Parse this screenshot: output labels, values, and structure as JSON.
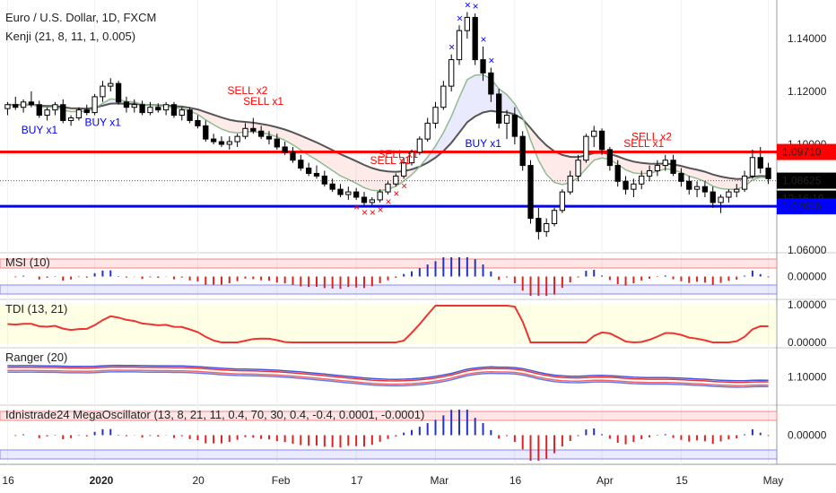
{
  "header": {
    "title": "Euro / U.S. Dollar, 1D, FXCM",
    "indicator": "Kenji (21, 8, 11, 1, 0.005)"
  },
  "colors": {
    "bull": "#ffffff",
    "bear": "#000000",
    "resistance": "#ff0000",
    "support": "#0000ff",
    "sell": "#ff0000",
    "buy": "#0000ff",
    "fast_ma": "#8fbc8f",
    "slow_ma": "#555555"
  },
  "chart_data": [
    {
      "type": "candlestick",
      "title": "Euro / U.S. Dollar, 1D, FXCM",
      "ylim": [
        1.055,
        1.155
      ],
      "y_ticks": [
        "1.14000",
        "1.12000",
        "1.10000",
        "1.06000"
      ],
      "x_ticks": [
        "16",
        "2020",
        "20",
        "Feb",
        "17",
        "Mar",
        "16",
        "Apr",
        "15",
        "May"
      ],
      "x_tick_index": [
        0,
        11,
        24,
        34,
        44,
        54,
        64,
        75,
        85,
        96
      ],
      "price_labels": [
        {
          "text": "1.09710",
          "value": 1.0971,
          "color": "#ff0000"
        },
        {
          "text": "1.08625",
          "value": 1.08625,
          "color": "#000000"
        },
        {
          "text": "12:16:19",
          "color": "#000000"
        },
        {
          "text": "1.07656",
          "value": 1.07656,
          "color": "#0000ff"
        }
      ],
      "horizontal_lines": [
        {
          "value": 1.0971,
          "color": "#ff0000"
        },
        {
          "value": 1.07656,
          "color": "#0000ff"
        }
      ],
      "dotted_line": 1.08625,
      "candles": [
        [
          1.1135,
          1.116,
          1.111,
          1.115
        ],
        [
          1.115,
          1.118,
          1.113,
          1.114
        ],
        [
          1.114,
          1.117,
          1.112,
          1.116
        ],
        [
          1.116,
          1.12,
          1.114,
          1.115
        ],
        [
          1.115,
          1.1165,
          1.11,
          1.111
        ],
        [
          1.111,
          1.114,
          1.109,
          1.113
        ],
        [
          1.113,
          1.116,
          1.111,
          1.115
        ],
        [
          1.115,
          1.117,
          1.108,
          1.109
        ],
        [
          1.109,
          1.111,
          1.107,
          1.11
        ],
        [
          1.11,
          1.114,
          1.109,
          1.113
        ],
        [
          1.113,
          1.115,
          1.111,
          1.112
        ],
        [
          1.112,
          1.119,
          1.111,
          1.118
        ],
        [
          1.118,
          1.124,
          1.116,
          1.122
        ],
        [
          1.122,
          1.125,
          1.12,
          1.123
        ],
        [
          1.123,
          1.124,
          1.115,
          1.116
        ],
        [
          1.116,
          1.118,
          1.112,
          1.114
        ],
        [
          1.114,
          1.117,
          1.112,
          1.115
        ],
        [
          1.115,
          1.1165,
          1.111,
          1.112
        ],
        [
          1.112,
          1.116,
          1.111,
          1.114
        ],
        [
          1.114,
          1.1155,
          1.112,
          1.113
        ],
        [
          1.113,
          1.116,
          1.111,
          1.115
        ],
        [
          1.115,
          1.116,
          1.11,
          1.111
        ],
        [
          1.111,
          1.114,
          1.109,
          1.113
        ],
        [
          1.113,
          1.114,
          1.108,
          1.109
        ],
        [
          1.109,
          1.111,
          1.106,
          1.107
        ],
        [
          1.107,
          1.109,
          1.101,
          1.102
        ],
        [
          1.102,
          1.104,
          1.1,
          1.101
        ],
        [
          1.101,
          1.103,
          1.099,
          1.1
        ],
        [
          1.1,
          1.103,
          1.098,
          1.101
        ],
        [
          1.101,
          1.104,
          1.099,
          1.103
        ],
        [
          1.103,
          1.108,
          1.102,
          1.106
        ],
        [
          1.106,
          1.11,
          1.104,
          1.105
        ],
        [
          1.105,
          1.107,
          1.102,
          1.103
        ],
        [
          1.103,
          1.105,
          1.1,
          1.102
        ],
        [
          1.102,
          1.104,
          1.098,
          1.099
        ],
        [
          1.099,
          1.101,
          1.096,
          1.097
        ],
        [
          1.097,
          1.099,
          1.093,
          1.094
        ],
        [
          1.094,
          1.096,
          1.09,
          1.091
        ],
        [
          1.091,
          1.093,
          1.088,
          1.089
        ],
        [
          1.089,
          1.092,
          1.087,
          1.088
        ],
        [
          1.088,
          1.09,
          1.084,
          1.085
        ],
        [
          1.085,
          1.087,
          1.082,
          1.083
        ],
        [
          1.083,
          1.085,
          1.08,
          1.081
        ],
        [
          1.081,
          1.084,
          1.079,
          1.082
        ],
        [
          1.082,
          1.0835,
          1.079,
          1.08
        ],
        [
          1.08,
          1.082,
          1.077,
          1.078
        ],
        [
          1.078,
          1.08,
          1.077,
          1.079
        ],
        [
          1.079,
          1.083,
          1.078,
          1.082
        ],
        [
          1.082,
          1.086,
          1.081,
          1.085
        ],
        [
          1.085,
          1.089,
          1.084,
          1.088
        ],
        [
          1.088,
          1.095,
          1.087,
          1.093
        ],
        [
          1.093,
          1.098,
          1.092,
          1.097
        ],
        [
          1.097,
          1.103,
          1.096,
          1.102
        ],
        [
          1.102,
          1.11,
          1.101,
          1.108
        ],
        [
          1.108,
          1.116,
          1.106,
          1.114
        ],
        [
          1.114,
          1.124,
          1.113,
          1.122
        ],
        [
          1.122,
          1.134,
          1.12,
          1.132
        ],
        [
          1.132,
          1.145,
          1.13,
          1.143
        ],
        [
          1.143,
          1.15,
          1.14,
          1.148
        ],
        [
          1.148,
          1.1495,
          1.13,
          1.132
        ],
        [
          1.132,
          1.137,
          1.124,
          1.127
        ],
        [
          1.127,
          1.129,
          1.116,
          1.119
        ],
        [
          1.119,
          1.121,
          1.106,
          1.108
        ],
        [
          1.108,
          1.113,
          1.102,
          1.111
        ],
        [
          1.111,
          1.114,
          1.1,
          1.103
        ],
        [
          1.103,
          1.105,
          1.09,
          1.092
        ],
        [
          1.092,
          1.094,
          1.07,
          1.072
        ],
        [
          1.072,
          1.076,
          1.064,
          1.067
        ],
        [
          1.067,
          1.072,
          1.065,
          1.07
        ],
        [
          1.07,
          1.076,
          1.069,
          1.075
        ],
        [
          1.075,
          1.083,
          1.074,
          1.082
        ],
        [
          1.082,
          1.09,
          1.081,
          1.088
        ],
        [
          1.088,
          1.096,
          1.086,
          1.094
        ],
        [
          1.094,
          1.104,
          1.093,
          1.103
        ],
        [
          1.103,
          1.107,
          1.099,
          1.105
        ],
        [
          1.105,
          1.106,
          1.096,
          1.098
        ],
        [
          1.098,
          1.099,
          1.09,
          1.092
        ],
        [
          1.092,
          1.094,
          1.084,
          1.086
        ],
        [
          1.086,
          1.088,
          1.081,
          1.083
        ],
        [
          1.083,
          1.087,
          1.08,
          1.085
        ],
        [
          1.085,
          1.09,
          1.083,
          1.088
        ],
        [
          1.088,
          1.092,
          1.086,
          1.09
        ],
        [
          1.09,
          1.094,
          1.088,
          1.092
        ],
        [
          1.092,
          1.096,
          1.09,
          1.094
        ],
        [
          1.094,
          1.096,
          1.088,
          1.089
        ],
        [
          1.089,
          1.091,
          1.084,
          1.086
        ],
        [
          1.086,
          1.088,
          1.081,
          1.083
        ],
        [
          1.083,
          1.086,
          1.08,
          1.084
        ],
        [
          1.084,
          1.086,
          1.08,
          1.082
        ],
        [
          1.082,
          1.084,
          1.076,
          1.078
        ],
        [
          1.078,
          1.081,
          1.074,
          1.08
        ],
        [
          1.08,
          1.083,
          1.078,
          1.082
        ],
        [
          1.082,
          1.085,
          1.08,
          1.083
        ],
        [
          1.083,
          1.09,
          1.082,
          1.088
        ],
        [
          1.088,
          1.098,
          1.087,
          1.095
        ],
        [
          1.095,
          1.099,
          1.089,
          1.091
        ],
        [
          1.091,
          1.093,
          1.085,
          1.087
        ]
      ],
      "signals": [
        {
          "text": "BUY x1",
          "index": 4,
          "value": 1.104,
          "kind": "buy"
        },
        {
          "text": "BUY x1",
          "index": 12,
          "value": 1.107,
          "kind": "buy"
        },
        {
          "text": "SELL x2",
          "index": 30,
          "value": 1.119,
          "kind": "sell"
        },
        {
          "text": "SELL x1",
          "index": 32,
          "value": 1.115,
          "kind": "sell"
        },
        {
          "text": "SELL x1",
          "index": 49,
          "value": 1.095,
          "kind": "sell"
        },
        {
          "text": "SELL x1",
          "index": 48,
          "value": 1.0925,
          "kind": "sell"
        },
        {
          "text": "BUY x1",
          "index": 60,
          "value": 1.099,
          "kind": "buy"
        },
        {
          "text": "SELL x1",
          "index": 80,
          "value": 1.099,
          "kind": "sell"
        },
        {
          "text": "SELL x2",
          "index": 81,
          "value": 1.1015,
          "kind": "sell"
        }
      ]
    },
    {
      "type": "histogram",
      "title": "MSI (10)",
      "y_ticks": [
        "0.00000"
      ],
      "bands": [
        "upper",
        "lower"
      ]
    },
    {
      "type": "line",
      "title": "TDI (13, 21)",
      "y_ticks": [
        "1.00000",
        "0.00000"
      ]
    },
    {
      "type": "line",
      "title": "Ranger (20)",
      "y_ticks": [
        "1.10000"
      ]
    },
    {
      "type": "histogram",
      "title": "Idnistrade24 MegaOscillator (13, 8, 21, 11, 0.4, 70, 30, 0.4, -0.4, 0.0001, -0.0001)",
      "y_ticks": [
        "0.00000"
      ]
    }
  ]
}
